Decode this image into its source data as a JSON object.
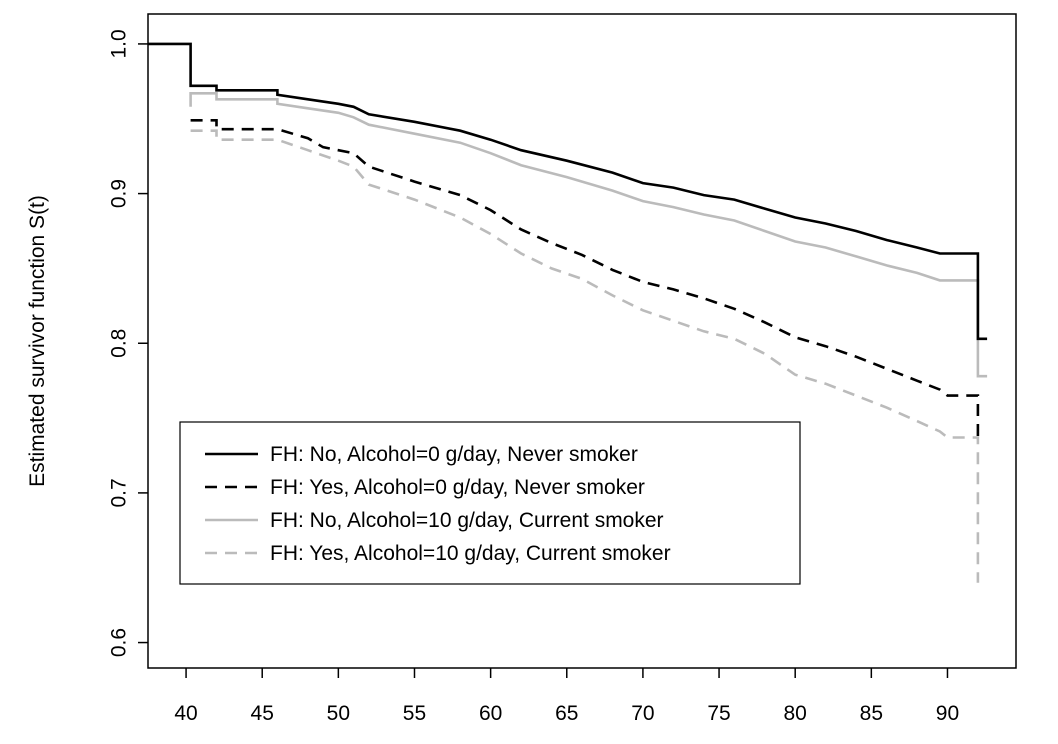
{
  "chart_data": {
    "type": "line",
    "title": "",
    "xlabel": "",
    "ylabel": "Estimated survivor function S(t)",
    "xlim": [
      37.5,
      94.5
    ],
    "ylim": [
      0.583,
      1.02
    ],
    "x_ticks": [
      "40",
      "45",
      "50",
      "55",
      "60",
      "65",
      "70",
      "75",
      "80",
      "85",
      "90"
    ],
    "y_ticks": [
      "0.6",
      "0.7",
      "0.8",
      "0.9",
      "1.0"
    ],
    "grid": false,
    "legend_position": "bottom-left",
    "series": [
      {
        "name": "FH: No, Alcohol=0 g/day, Never smoker",
        "color": "#000000",
        "dash": "solid",
        "points": [
          [
            37.5,
            1.0
          ],
          [
            40.3,
            1.0
          ],
          [
            40.3,
            0.972
          ],
          [
            42,
            0.972
          ],
          [
            42,
            0.969
          ],
          [
            46,
            0.969
          ],
          [
            46,
            0.966
          ],
          [
            48,
            0.963
          ],
          [
            50,
            0.96
          ],
          [
            51,
            0.958
          ],
          [
            52,
            0.953
          ],
          [
            55,
            0.948
          ],
          [
            58,
            0.942
          ],
          [
            60,
            0.936
          ],
          [
            62,
            0.929
          ],
          [
            65,
            0.922
          ],
          [
            68,
            0.914
          ],
          [
            70,
            0.907
          ],
          [
            72,
            0.904
          ],
          [
            74,
            0.899
          ],
          [
            76,
            0.896
          ],
          [
            78,
            0.89
          ],
          [
            80,
            0.884
          ],
          [
            82,
            0.88
          ],
          [
            84,
            0.875
          ],
          [
            86,
            0.869
          ],
          [
            88,
            0.864
          ],
          [
            89.5,
            0.86
          ],
          [
            92,
            0.86
          ],
          [
            92,
            0.803
          ],
          [
            92.6,
            0.803
          ]
        ]
      },
      {
        "name": "FH: Yes, Alcohol=0 g/day, Never smoker",
        "color": "#000000",
        "dash": "dashed",
        "points": [
          [
            40.3,
            0.949
          ],
          [
            42,
            0.949
          ],
          [
            42,
            0.943
          ],
          [
            46,
            0.943
          ],
          [
            48,
            0.937
          ],
          [
            49,
            0.931
          ],
          [
            51,
            0.927
          ],
          [
            52,
            0.918
          ],
          [
            55,
            0.908
          ],
          [
            58,
            0.899
          ],
          [
            60,
            0.889
          ],
          [
            62,
            0.876
          ],
          [
            64,
            0.867
          ],
          [
            66,
            0.859
          ],
          [
            68,
            0.849
          ],
          [
            70,
            0.841
          ],
          [
            72,
            0.836
          ],
          [
            74,
            0.83
          ],
          [
            76,
            0.823
          ],
          [
            78,
            0.814
          ],
          [
            80,
            0.804
          ],
          [
            82,
            0.798
          ],
          [
            84,
            0.791
          ],
          [
            86,
            0.783
          ],
          [
            88,
            0.775
          ],
          [
            89.5,
            0.769
          ],
          [
            90,
            0.765
          ],
          [
            92,
            0.765
          ],
          [
            92,
            0.737
          ]
        ]
      },
      {
        "name": "FH: No, Alcohol=10 g/day, Current smoker",
        "color": "#bbbbbb",
        "dash": "solid",
        "points": [
          [
            40.3,
            0.958
          ],
          [
            40.3,
            0.967
          ],
          [
            42,
            0.967
          ],
          [
            42,
            0.963
          ],
          [
            46,
            0.963
          ],
          [
            46,
            0.96
          ],
          [
            48,
            0.957
          ],
          [
            50,
            0.954
          ],
          [
            51,
            0.951
          ],
          [
            52,
            0.946
          ],
          [
            55,
            0.94
          ],
          [
            58,
            0.934
          ],
          [
            60,
            0.927
          ],
          [
            62,
            0.919
          ],
          [
            65,
            0.911
          ],
          [
            68,
            0.902
          ],
          [
            70,
            0.895
          ],
          [
            72,
            0.891
          ],
          [
            74,
            0.886
          ],
          [
            76,
            0.882
          ],
          [
            78,
            0.875
          ],
          [
            80,
            0.868
          ],
          [
            82,
            0.864
          ],
          [
            84,
            0.858
          ],
          [
            86,
            0.852
          ],
          [
            88,
            0.847
          ],
          [
            89.5,
            0.842
          ],
          [
            92,
            0.842
          ],
          [
            92,
            0.778
          ],
          [
            92.6,
            0.778
          ]
        ]
      },
      {
        "name": "FH: Yes, Alcohol=10 g/day, Current smoker",
        "color": "#bbbbbb",
        "dash": "dashed",
        "points": [
          [
            40.3,
            0.942
          ],
          [
            42,
            0.942
          ],
          [
            42,
            0.936
          ],
          [
            46,
            0.936
          ],
          [
            48,
            0.929
          ],
          [
            50,
            0.922
          ],
          [
            51,
            0.918
          ],
          [
            52,
            0.906
          ],
          [
            55,
            0.896
          ],
          [
            58,
            0.884
          ],
          [
            60,
            0.873
          ],
          [
            62,
            0.86
          ],
          [
            64,
            0.85
          ],
          [
            66,
            0.843
          ],
          [
            68,
            0.832
          ],
          [
            70,
            0.822
          ],
          [
            72,
            0.815
          ],
          [
            74,
            0.808
          ],
          [
            76,
            0.803
          ],
          [
            78,
            0.793
          ],
          [
            80,
            0.779
          ],
          [
            82,
            0.773
          ],
          [
            84,
            0.765
          ],
          [
            86,
            0.757
          ],
          [
            88,
            0.748
          ],
          [
            89.5,
            0.741
          ],
          [
            90,
            0.737
          ],
          [
            92,
            0.737
          ],
          [
            92,
            0.64
          ]
        ]
      }
    ]
  }
}
